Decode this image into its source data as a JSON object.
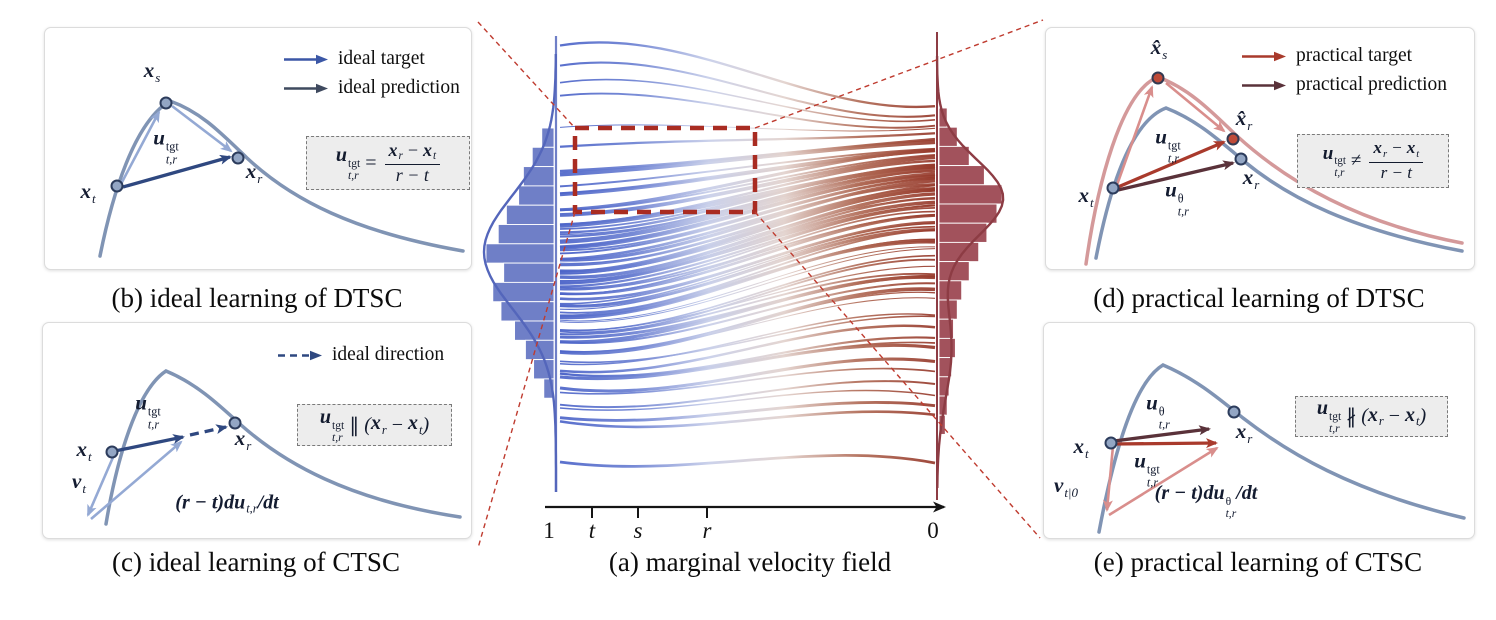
{
  "colors": {
    "trajectory_curve": "#8094b4",
    "ideal_target": "#3b57a6",
    "ideal_prediction": "#3f4a5f",
    "ideal_direction": "#2f4880",
    "practical_target": "#a93a2c",
    "practical_prediction": "#5a323a",
    "aux_vector_blue": "#94a9d4",
    "aux_vector_pink": "#d98e8c",
    "point_blue_fill": "#93a6c4",
    "point_red_fill": "#bf4a38",
    "equation_box_bg": "#ededed"
  },
  "panels": {
    "a": {
      "caption": "(a) marginal velocity field"
    },
    "b": {
      "caption": "(b) ideal learning of DTSC",
      "legend": [
        {
          "label": "ideal target",
          "color": "#3b57a6",
          "dashed": false
        },
        {
          "label": "ideal prediction",
          "color": "#3f4a5f",
          "dashed": false
        }
      ],
      "labels": {
        "x_s": [
          {
            "v": "x",
            "sub": "s"
          }
        ],
        "x_t": [
          {
            "v": "x",
            "sub": "t"
          }
        ],
        "x_r": [
          {
            "v": "x",
            "sub": "r"
          }
        ],
        "u_tgt": [
          {
            "v": "u",
            "sup": "tgt",
            "sub": "t,r"
          }
        ]
      },
      "equation": [
        {
          "v": "u",
          "sup": "tgt",
          "sub": "t,r"
        },
        {
          "t": "="
        },
        {
          "frac": {
            "num": [
              {
                "v": "x",
                "sub": "r"
              },
              {
                "t": "−"
              },
              {
                "v": "x",
                "sub": "t"
              }
            ],
            "den": [
              "r − t"
            ]
          }
        }
      ]
    },
    "c": {
      "caption": "(c) ideal learning of CTSC",
      "legend": [
        {
          "label": "ideal direction",
          "color": "#2f4880",
          "dashed": true
        }
      ],
      "labels": {
        "u_tgt": [
          {
            "v": "u",
            "sup": "tgt",
            "sub": "t,r"
          }
        ],
        "x_t": [
          {
            "v": "x",
            "sub": "t"
          }
        ],
        "x_r": [
          {
            "v": "x",
            "sub": "r"
          }
        ],
        "v_t": [
          {
            "v": "v",
            "sub": "t"
          }
        ],
        "du": [
          "(r − t)d",
          {
            "v": "u",
            "sub": "t,r"
          },
          "/dt"
        ]
      },
      "equation": [
        {
          "v": "u",
          "sup": "tgt",
          "sub": "t,r"
        },
        {
          "t": "∥"
        },
        "(",
        {
          "v": "x",
          "sub": "r"
        },
        {
          "t": "−"
        },
        {
          "v": "x",
          "sub": "t"
        },
        ")"
      ]
    },
    "d": {
      "caption": "(d) practical learning of DTSC",
      "legend": [
        {
          "label": "practical target",
          "color": "#a93a2c",
          "dashed": false
        },
        {
          "label": "practical prediction",
          "color": "#5a323a",
          "dashed": false
        }
      ],
      "labels": {
        "xhat_s": [
          {
            "v": "x̂",
            "sub": "s"
          }
        ],
        "xhat_r": [
          {
            "v": "x̂",
            "sub": "r"
          }
        ],
        "x_r": [
          {
            "v": "x",
            "sub": "r"
          }
        ],
        "x_t": [
          {
            "v": "x",
            "sub": "t"
          }
        ],
        "u_tgt": [
          {
            "v": "u",
            "sup": "tgt",
            "sub": "t,r"
          }
        ],
        "u_theta": [
          {
            "v": "u",
            "sup": "θ",
            "sub": "t,r"
          }
        ]
      },
      "equation": [
        {
          "v": "u",
          "sup": "tgt",
          "sub": "t,r"
        },
        {
          "t": "≠"
        },
        {
          "frac": {
            "num": [
              {
                "v": "x",
                "sub": "r"
              },
              {
                "t": "−"
              },
              {
                "v": "x",
                "sub": "t"
              }
            ],
            "den": [
              "r − t"
            ]
          }
        }
      ]
    },
    "e": {
      "caption": "(e) practical learning of CTSC",
      "labels": {
        "u_theta": [
          {
            "v": "u",
            "sup": "θ",
            "sub": "t,r"
          }
        ],
        "x_t": [
          {
            "v": "x",
            "sub": "t"
          }
        ],
        "x_r": [
          {
            "v": "x",
            "sub": "r"
          }
        ],
        "u_tgt": [
          {
            "v": "u",
            "sup": "tgt",
            "sub": "t,r"
          }
        ],
        "v_t0": [
          {
            "v": "v",
            "sub": "t|0"
          }
        ],
        "du": [
          "(r − t)d",
          {
            "v": "u",
            "sup": "θ",
            "sub": "t,r"
          },
          "/dt"
        ]
      },
      "equation": [
        {
          "v": "u",
          "sup": "tgt",
          "sub": "t,r"
        },
        {
          "t": "∦"
        },
        "(",
        {
          "v": "x",
          "sub": "r"
        },
        {
          "t": "−"
        },
        {
          "v": "x",
          "sub": "t"
        },
        ")"
      ]
    }
  },
  "chart_data": {
    "type": "flow-map",
    "title": "(a) marginal velocity field",
    "x_ticks": [
      "1",
      "t",
      "s",
      "r",
      "0"
    ],
    "x_direction": "time axis from 1 (left, noise/blue) to 0 (right, data/red)",
    "flow_gradient": [
      "#4b63c8",
      "#6b80d2",
      "#c7cee9",
      "#e2d2cd",
      "#b06a55",
      "#96392b"
    ],
    "left_marginal": {
      "fill": "#6f7fc7",
      "line": "#5466bb",
      "bars": [
        0.18,
        0.32,
        0.45,
        0.52,
        0.7,
        0.82,
        1.0,
        0.74,
        0.9,
        0.78,
        0.58,
        0.42,
        0.3,
        0.15
      ]
    },
    "right_marginal": {
      "fill": "#a2525c",
      "line": "#8d3c44",
      "bars": [
        0.13,
        0.29,
        0.48,
        0.72,
        1.0,
        0.92,
        0.76,
        0.63,
        0.48,
        0.36,
        0.29,
        0.23,
        0.26,
        0.2,
        0.16,
        0.13,
        0.1
      ]
    },
    "n_trajectories": 78,
    "zoom_box_color": "#a92c22",
    "connector_color": "#bf3b2f"
  }
}
